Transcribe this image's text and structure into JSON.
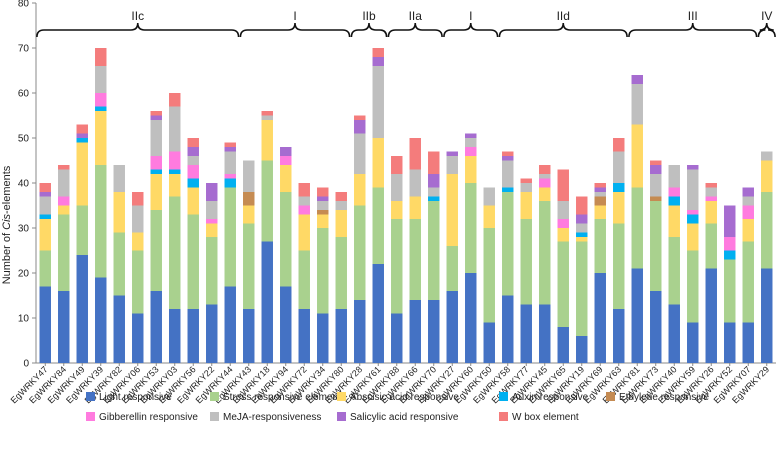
{
  "chart_data": {
    "type": "bar",
    "stacked": true,
    "ylabel": "Number of Cis-elements",
    "ylabel_prefix": "Number of ",
    "ylabel_italic": "Cis",
    "ylabel_suffix": "-elements",
    "ylim": [
      0,
      80
    ],
    "yticks": [
      0,
      10,
      20,
      30,
      40,
      50,
      60,
      70,
      80
    ],
    "legend_position": "bottom",
    "categories": [
      "EgWRKY47",
      "EgWRKY84",
      "EgWRKY49",
      "EgWRKY39",
      "EgWRKY82",
      "EgWRKY06",
      "EgWRKY53",
      "EgWRKY03",
      "EgWRKY56",
      "EgWRKY22",
      "EgWRKY44",
      "EgWRKY43",
      "EgWRKY18",
      "EgWRKY94",
      "EgWRKY72",
      "EgWRKY34",
      "EgWRKY80",
      "EgWRKY28",
      "EgWRKY61",
      "EgWRKY88",
      "EgWRKY66",
      "EgWRKY70",
      "EgWRKY27",
      "EgWRKY60",
      "EgWRKY50",
      "EgWRKY58",
      "EgWRKY77",
      "EgWRKY45",
      "EgWRKY65",
      "EgWRKY19",
      "EgWRKY69",
      "EgWRKY63",
      "EgWRKY81",
      "EgWRKY73",
      "EgWRKY40",
      "EgWRKY59",
      "EgWRKY26",
      "EgWRKY52",
      "EgWRKY07",
      "EgWRKY29"
    ],
    "series": [
      {
        "name": "Light responsive",
        "color": "#4472C4",
        "values": [
          17,
          16,
          24,
          19,
          15,
          11,
          16,
          12,
          12,
          13,
          17,
          12,
          27,
          17,
          12,
          11,
          12,
          14,
          22,
          11,
          14,
          14,
          16,
          20,
          9,
          15,
          13,
          13,
          8,
          6,
          20,
          12,
          21,
          16,
          13,
          9,
          21,
          9,
          9,
          21
        ]
      },
      {
        "name": "Stress responsive elements",
        "color": "#A9D18E",
        "values": [
          8,
          17,
          11,
          25,
          14,
          14,
          18,
          25,
          21,
          15,
          22,
          19,
          18,
          21,
          13,
          19,
          16,
          21,
          17,
          21,
          18,
          22,
          10,
          20,
          21,
          23,
          19,
          23,
          19,
          21,
          12,
          19,
          18,
          20,
          15,
          16,
          10,
          14,
          18,
          17
        ]
      },
      {
        "name": "Abscisic acid responsive",
        "color": "#FFD966",
        "values": [
          7,
          2,
          14,
          12,
          9,
          4,
          8,
          5,
          6,
          3,
          0,
          4,
          9,
          6,
          8,
          3,
          6,
          7,
          11,
          4,
          5,
          0,
          16,
          6,
          5,
          0,
          6,
          3,
          3,
          1,
          3,
          7,
          14,
          0,
          7,
          6,
          5,
          0,
          5,
          7
        ]
      },
      {
        "name": "Auxin responsive",
        "color": "#00B0F0",
        "values": [
          1,
          0,
          1,
          1,
          0,
          0,
          1,
          1,
          2,
          0,
          2,
          0,
          0,
          0,
          0,
          0,
          0,
          0,
          0,
          0,
          0,
          1,
          0,
          0,
          0,
          1,
          0,
          0,
          0,
          1,
          0,
          2,
          0,
          0,
          2,
          2,
          0,
          2,
          0,
          0
        ]
      },
      {
        "name": "Ethylene responsive",
        "color": "#C58B52",
        "values": [
          0,
          0,
          0,
          0,
          0,
          0,
          0,
          0,
          0,
          0,
          0,
          3,
          0,
          0,
          0,
          1,
          0,
          0,
          0,
          0,
          0,
          0,
          0,
          0,
          0,
          0,
          0,
          0,
          0,
          0,
          2,
          0,
          0,
          1,
          0,
          0,
          0,
          0,
          0,
          0
        ]
      },
      {
        "name": "Gibberellin responsive",
        "color": "#FF7BDF",
        "values": [
          0,
          2,
          0,
          3,
          0,
          0,
          3,
          4,
          3,
          1,
          1,
          0,
          0,
          2,
          2,
          0,
          0,
          0,
          0,
          0,
          0,
          0,
          0,
          2,
          0,
          0,
          0,
          2,
          2,
          0,
          0,
          0,
          0,
          0,
          2,
          1,
          1,
          3,
          3,
          0
        ]
      },
      {
        "name": "MeJA-responsiveness",
        "color": "#BFBFBF",
        "values": [
          4,
          6,
          0,
          6,
          6,
          6,
          8,
          10,
          2,
          4,
          5,
          7,
          1,
          0,
          2,
          2,
          2,
          9,
          16,
          6,
          6,
          2,
          4,
          2,
          4,
          6,
          2,
          1,
          4,
          2,
          1,
          7,
          9,
          5,
          5,
          9,
          2,
          0,
          2,
          2
        ]
      },
      {
        "name": "Salicylic acid responsive",
        "color": "#A66CD0",
        "values": [
          1,
          0,
          1,
          0,
          0,
          0,
          1,
          0,
          2,
          4,
          1,
          0,
          0,
          2,
          0,
          1,
          0,
          3,
          2,
          0,
          0,
          3,
          1,
          1,
          0,
          1,
          0,
          0,
          0,
          2,
          1,
          0,
          2,
          2,
          0,
          1,
          0,
          7,
          2,
          0
        ]
      },
      {
        "name": "W box element",
        "color": "#F47C7C",
        "values": [
          2,
          1,
          2,
          4,
          0,
          3,
          1,
          3,
          2,
          0,
          1,
          0,
          1,
          0,
          3,
          2,
          2,
          1,
          2,
          4,
          7,
          5,
          0,
          0,
          0,
          1,
          1,
          2,
          7,
          4,
          1,
          3,
          0,
          1,
          0,
          0,
          1,
          0,
          0,
          0
        ]
      }
    ],
    "groups": [
      {
        "label": "IIc",
        "from": "EgWRKY47",
        "to": "EgWRKY44"
      },
      {
        "label": "I",
        "from": "EgWRKY43",
        "to": "EgWRKY80"
      },
      {
        "label": "IIb",
        "from": "EgWRKY28",
        "to": "EgWRKY61"
      },
      {
        "label": "IIa",
        "from": "EgWRKY88",
        "to": "EgWRKY70"
      },
      {
        "label": "I",
        "from": "EgWRKY27",
        "to": "EgWRKY50"
      },
      {
        "label": "IId",
        "from": "EgWRKY58",
        "to": "EgWRKY63"
      },
      {
        "label": "III",
        "from": "EgWRKY81",
        "to": "EgWRKY07"
      },
      {
        "label": "IV",
        "from": "EgWRKY29",
        "to": "EgWRKY29"
      }
    ]
  }
}
